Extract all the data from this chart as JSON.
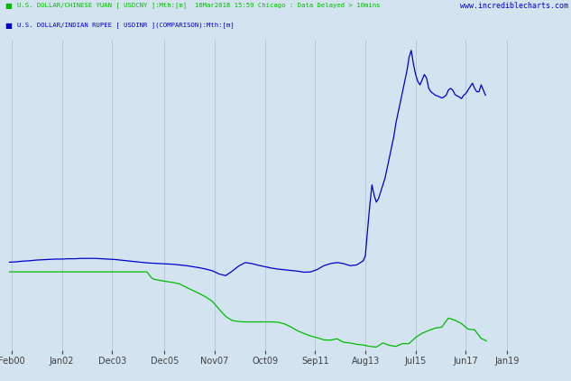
{
  "title_line1": "U.S. DOLLAR/CHINESE YUAN [ USDCNY ]:Mth:[m]  16Mar2018 15:59 Chicago : Data Delayed > 10mins",
  "title_line2": "U.S. DOLLAR/INDIAN RUPEE [ USDINR ](COMPARISON):Mth:[m]",
  "watermark": "www.incrediblecharts.com",
  "background_color": "#d4e3f0",
  "plot_background_color": "#d4e3f0",
  "grid_color": "#b0c4d8",
  "cny_color": "#00bb00",
  "inr_color": "#0000cc",
  "yaxis_color": "#0000cc",
  "xaxis_color": "#404040",
  "ylim": [
    6.0,
    15.0
  ],
  "yticks": [
    6.0,
    6.5,
    7.0,
    7.5,
    8.0,
    8.5,
    9.0,
    9.5,
    10.0,
    10.5,
    11.0,
    11.5,
    12.0,
    12.5,
    13.0,
    13.5,
    14.0,
    14.5,
    15.0
  ],
  "xtick_labels": [
    "Feb00",
    "Jan02",
    "Dec03",
    "Dec05",
    "Nov07",
    "Oct09",
    "Sep11",
    "Aug13",
    "Jul15",
    "Jun17",
    "Jan19"
  ],
  "xtick_positions": [
    2000.083,
    2002.0,
    2003.917,
    2005.917,
    2007.833,
    2009.75,
    2011.667,
    2013.583,
    2015.5,
    2017.417,
    2019.0
  ],
  "xlim": [
    1999.75,
    2019.25
  ],
  "cny_data": [
    [
      2000.0,
      8.28
    ],
    [
      2000.25,
      8.28
    ],
    [
      2000.5,
      8.28
    ],
    [
      2000.75,
      8.28
    ],
    [
      2001.0,
      8.28
    ],
    [
      2001.25,
      8.28
    ],
    [
      2001.5,
      8.28
    ],
    [
      2001.75,
      8.28
    ],
    [
      2002.0,
      8.28
    ],
    [
      2002.25,
      8.28
    ],
    [
      2002.5,
      8.28
    ],
    [
      2002.75,
      8.28
    ],
    [
      2003.0,
      8.28
    ],
    [
      2003.25,
      8.28
    ],
    [
      2003.5,
      8.28
    ],
    [
      2003.75,
      8.28
    ],
    [
      2004.0,
      8.28
    ],
    [
      2004.25,
      8.28
    ],
    [
      2004.5,
      8.28
    ],
    [
      2004.75,
      8.28
    ],
    [
      2005.0,
      8.28
    ],
    [
      2005.25,
      8.28
    ],
    [
      2005.417,
      8.11
    ],
    [
      2005.5,
      8.07
    ],
    [
      2005.75,
      8.03
    ],
    [
      2006.0,
      8.0
    ],
    [
      2006.25,
      7.97
    ],
    [
      2006.5,
      7.93
    ],
    [
      2006.75,
      7.83
    ],
    [
      2007.0,
      7.74
    ],
    [
      2007.25,
      7.65
    ],
    [
      2007.5,
      7.55
    ],
    [
      2007.75,
      7.42
    ],
    [
      2008.0,
      7.2
    ],
    [
      2008.25,
      6.99
    ],
    [
      2008.5,
      6.87
    ],
    [
      2008.75,
      6.84
    ],
    [
      2009.0,
      6.83
    ],
    [
      2009.25,
      6.83
    ],
    [
      2009.5,
      6.83
    ],
    [
      2009.75,
      6.83
    ],
    [
      2010.0,
      6.83
    ],
    [
      2010.25,
      6.82
    ],
    [
      2010.5,
      6.77
    ],
    [
      2010.75,
      6.68
    ],
    [
      2011.0,
      6.57
    ],
    [
      2011.25,
      6.49
    ],
    [
      2011.5,
      6.42
    ],
    [
      2011.75,
      6.37
    ],
    [
      2012.0,
      6.31
    ],
    [
      2012.25,
      6.3
    ],
    [
      2012.5,
      6.34
    ],
    [
      2012.75,
      6.24
    ],
    [
      2013.0,
      6.22
    ],
    [
      2013.25,
      6.18
    ],
    [
      2013.5,
      6.16
    ],
    [
      2013.75,
      6.12
    ],
    [
      2014.0,
      6.1
    ],
    [
      2014.25,
      6.22
    ],
    [
      2014.5,
      6.15
    ],
    [
      2014.75,
      6.12
    ],
    [
      2015.0,
      6.2
    ],
    [
      2015.25,
      6.2
    ],
    [
      2015.5,
      6.38
    ],
    [
      2015.75,
      6.5
    ],
    [
      2016.0,
      6.58
    ],
    [
      2016.25,
      6.65
    ],
    [
      2016.5,
      6.68
    ],
    [
      2016.75,
      6.94
    ],
    [
      2017.0,
      6.88
    ],
    [
      2017.25,
      6.78
    ],
    [
      2017.5,
      6.62
    ],
    [
      2017.75,
      6.6
    ],
    [
      2018.0,
      6.35
    ],
    [
      2018.2,
      6.28
    ]
  ],
  "inr_data": [
    [
      2000.0,
      8.56
    ],
    [
      2000.25,
      8.57
    ],
    [
      2000.5,
      8.59
    ],
    [
      2000.75,
      8.6
    ],
    [
      2001.0,
      8.62
    ],
    [
      2001.25,
      8.63
    ],
    [
      2001.5,
      8.64
    ],
    [
      2001.75,
      8.65
    ],
    [
      2002.0,
      8.65
    ],
    [
      2002.25,
      8.66
    ],
    [
      2002.5,
      8.66
    ],
    [
      2002.75,
      8.67
    ],
    [
      2003.0,
      8.67
    ],
    [
      2003.25,
      8.67
    ],
    [
      2003.5,
      8.66
    ],
    [
      2003.75,
      8.65
    ],
    [
      2004.0,
      8.64
    ],
    [
      2004.25,
      8.62
    ],
    [
      2004.5,
      8.6
    ],
    [
      2004.75,
      8.58
    ],
    [
      2005.0,
      8.56
    ],
    [
      2005.25,
      8.54
    ],
    [
      2005.5,
      8.53
    ],
    [
      2005.75,
      8.52
    ],
    [
      2006.0,
      8.51
    ],
    [
      2006.25,
      8.5
    ],
    [
      2006.5,
      8.48
    ],
    [
      2006.75,
      8.46
    ],
    [
      2007.0,
      8.43
    ],
    [
      2007.25,
      8.4
    ],
    [
      2007.5,
      8.36
    ],
    [
      2007.75,
      8.31
    ],
    [
      2008.0,
      8.22
    ],
    [
      2008.25,
      8.17
    ],
    [
      2008.5,
      8.3
    ],
    [
      2008.75,
      8.45
    ],
    [
      2009.0,
      8.55
    ],
    [
      2009.25,
      8.52
    ],
    [
      2009.5,
      8.47
    ],
    [
      2009.75,
      8.43
    ],
    [
      2010.0,
      8.39
    ],
    [
      2010.25,
      8.36
    ],
    [
      2010.5,
      8.34
    ],
    [
      2010.75,
      8.32
    ],
    [
      2011.0,
      8.3
    ],
    [
      2011.25,
      8.27
    ],
    [
      2011.5,
      8.28
    ],
    [
      2011.75,
      8.35
    ],
    [
      2012.0,
      8.46
    ],
    [
      2012.25,
      8.52
    ],
    [
      2012.5,
      8.55
    ],
    [
      2012.75,
      8.52
    ],
    [
      2013.0,
      8.46
    ],
    [
      2013.25,
      8.48
    ],
    [
      2013.5,
      8.6
    ],
    [
      2013.583,
      8.75
    ],
    [
      2013.667,
      9.5
    ],
    [
      2013.75,
      10.2
    ],
    [
      2013.833,
      10.8
    ],
    [
      2013.917,
      10.5
    ],
    [
      2014.0,
      10.3
    ],
    [
      2014.083,
      10.4
    ],
    [
      2014.167,
      10.6
    ],
    [
      2014.25,
      10.8
    ],
    [
      2014.333,
      11.0
    ],
    [
      2014.417,
      11.3
    ],
    [
      2014.5,
      11.6
    ],
    [
      2014.583,
      11.9
    ],
    [
      2014.667,
      12.2
    ],
    [
      2014.75,
      12.6
    ],
    [
      2014.833,
      12.9
    ],
    [
      2014.917,
      13.2
    ],
    [
      2015.0,
      13.5
    ],
    [
      2015.083,
      13.8
    ],
    [
      2015.167,
      14.1
    ],
    [
      2015.25,
      14.5
    ],
    [
      2015.333,
      14.7
    ],
    [
      2015.417,
      14.3
    ],
    [
      2015.5,
      14.0
    ],
    [
      2015.583,
      13.8
    ],
    [
      2015.667,
      13.7
    ],
    [
      2015.75,
      13.85
    ],
    [
      2015.833,
      14.0
    ],
    [
      2015.917,
      13.9
    ],
    [
      2016.0,
      13.6
    ],
    [
      2016.083,
      13.5
    ],
    [
      2016.167,
      13.45
    ],
    [
      2016.25,
      13.4
    ],
    [
      2016.333,
      13.38
    ],
    [
      2016.417,
      13.35
    ],
    [
      2016.5,
      13.32
    ],
    [
      2016.583,
      13.35
    ],
    [
      2016.667,
      13.4
    ],
    [
      2016.75,
      13.55
    ],
    [
      2016.833,
      13.6
    ],
    [
      2016.917,
      13.55
    ],
    [
      2017.0,
      13.42
    ],
    [
      2017.083,
      13.38
    ],
    [
      2017.167,
      13.35
    ],
    [
      2017.25,
      13.3
    ],
    [
      2017.333,
      13.4
    ],
    [
      2017.417,
      13.45
    ],
    [
      2017.5,
      13.55
    ],
    [
      2017.583,
      13.65
    ],
    [
      2017.667,
      13.75
    ],
    [
      2017.75,
      13.6
    ],
    [
      2017.833,
      13.5
    ],
    [
      2017.917,
      13.5
    ],
    [
      2018.0,
      13.7
    ],
    [
      2018.083,
      13.55
    ],
    [
      2018.167,
      13.4
    ]
  ]
}
